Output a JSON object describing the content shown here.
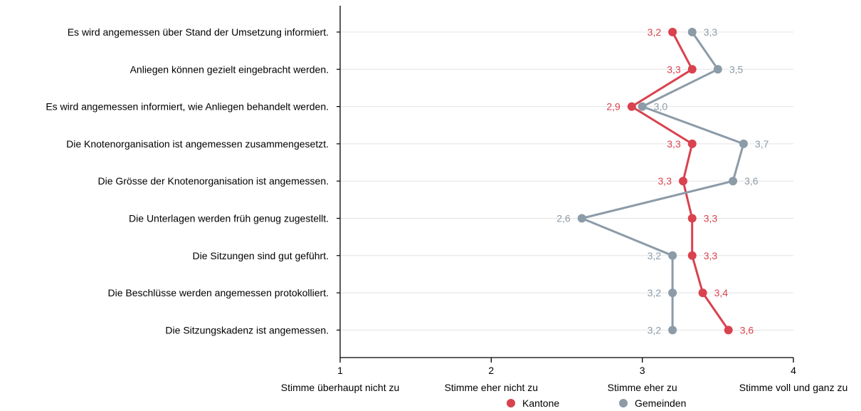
{
  "chart_data": {
    "type": "line",
    "orientation": "horizontal-categories",
    "categories": [
      "Es wird angemessen über Stand der Umsetzung informiert.",
      "Anliegen können gezielt eingebracht werden.",
      "Es wird angemessen informiert, wie Anliegen behandelt werden.",
      "Die Knotenorganisation ist angemessen zusammengesetzt.",
      "Die Grösse der Knotenorganisation ist angemessen.",
      "Die Unterlagen werden früh genug zugestellt.",
      "Die Sitzungen sind gut geführt.",
      "Die Beschlüsse werden angemessen protokolliert.",
      "Die Sitzungskadenz ist angemessen."
    ],
    "series": [
      {
        "name": "Kantone",
        "color": "#d9424e",
        "values": [
          3.2,
          3.33,
          2.93,
          3.33,
          3.27,
          3.33,
          3.33,
          3.4,
          3.57
        ],
        "labels": [
          "3,2",
          "3,3",
          "2,9",
          "3,3",
          "3,3",
          "3,3",
          "3,3",
          "3,4",
          "3,6"
        ]
      },
      {
        "name": "Gemeinden",
        "color": "#8c9ba8",
        "values": [
          3.33,
          3.5,
          3.0,
          3.67,
          3.6,
          2.6,
          3.2,
          3.2,
          3.2
        ],
        "labels": [
          "3,3",
          "3,5",
          "3,0",
          "3,7",
          "3,6",
          "2,6",
          "3,2",
          "3,2",
          "3,2"
        ]
      }
    ],
    "xlim": [
      1,
      4
    ],
    "xticks": [
      "1",
      "2",
      "3",
      "4"
    ],
    "scale_labels": [
      "Stimme überhaupt nicht zu",
      "Stimme eher nicht zu",
      "Stimme eher zu",
      "Stimme voll und ganz zu"
    ],
    "grid": true,
    "legend": "bottom"
  }
}
